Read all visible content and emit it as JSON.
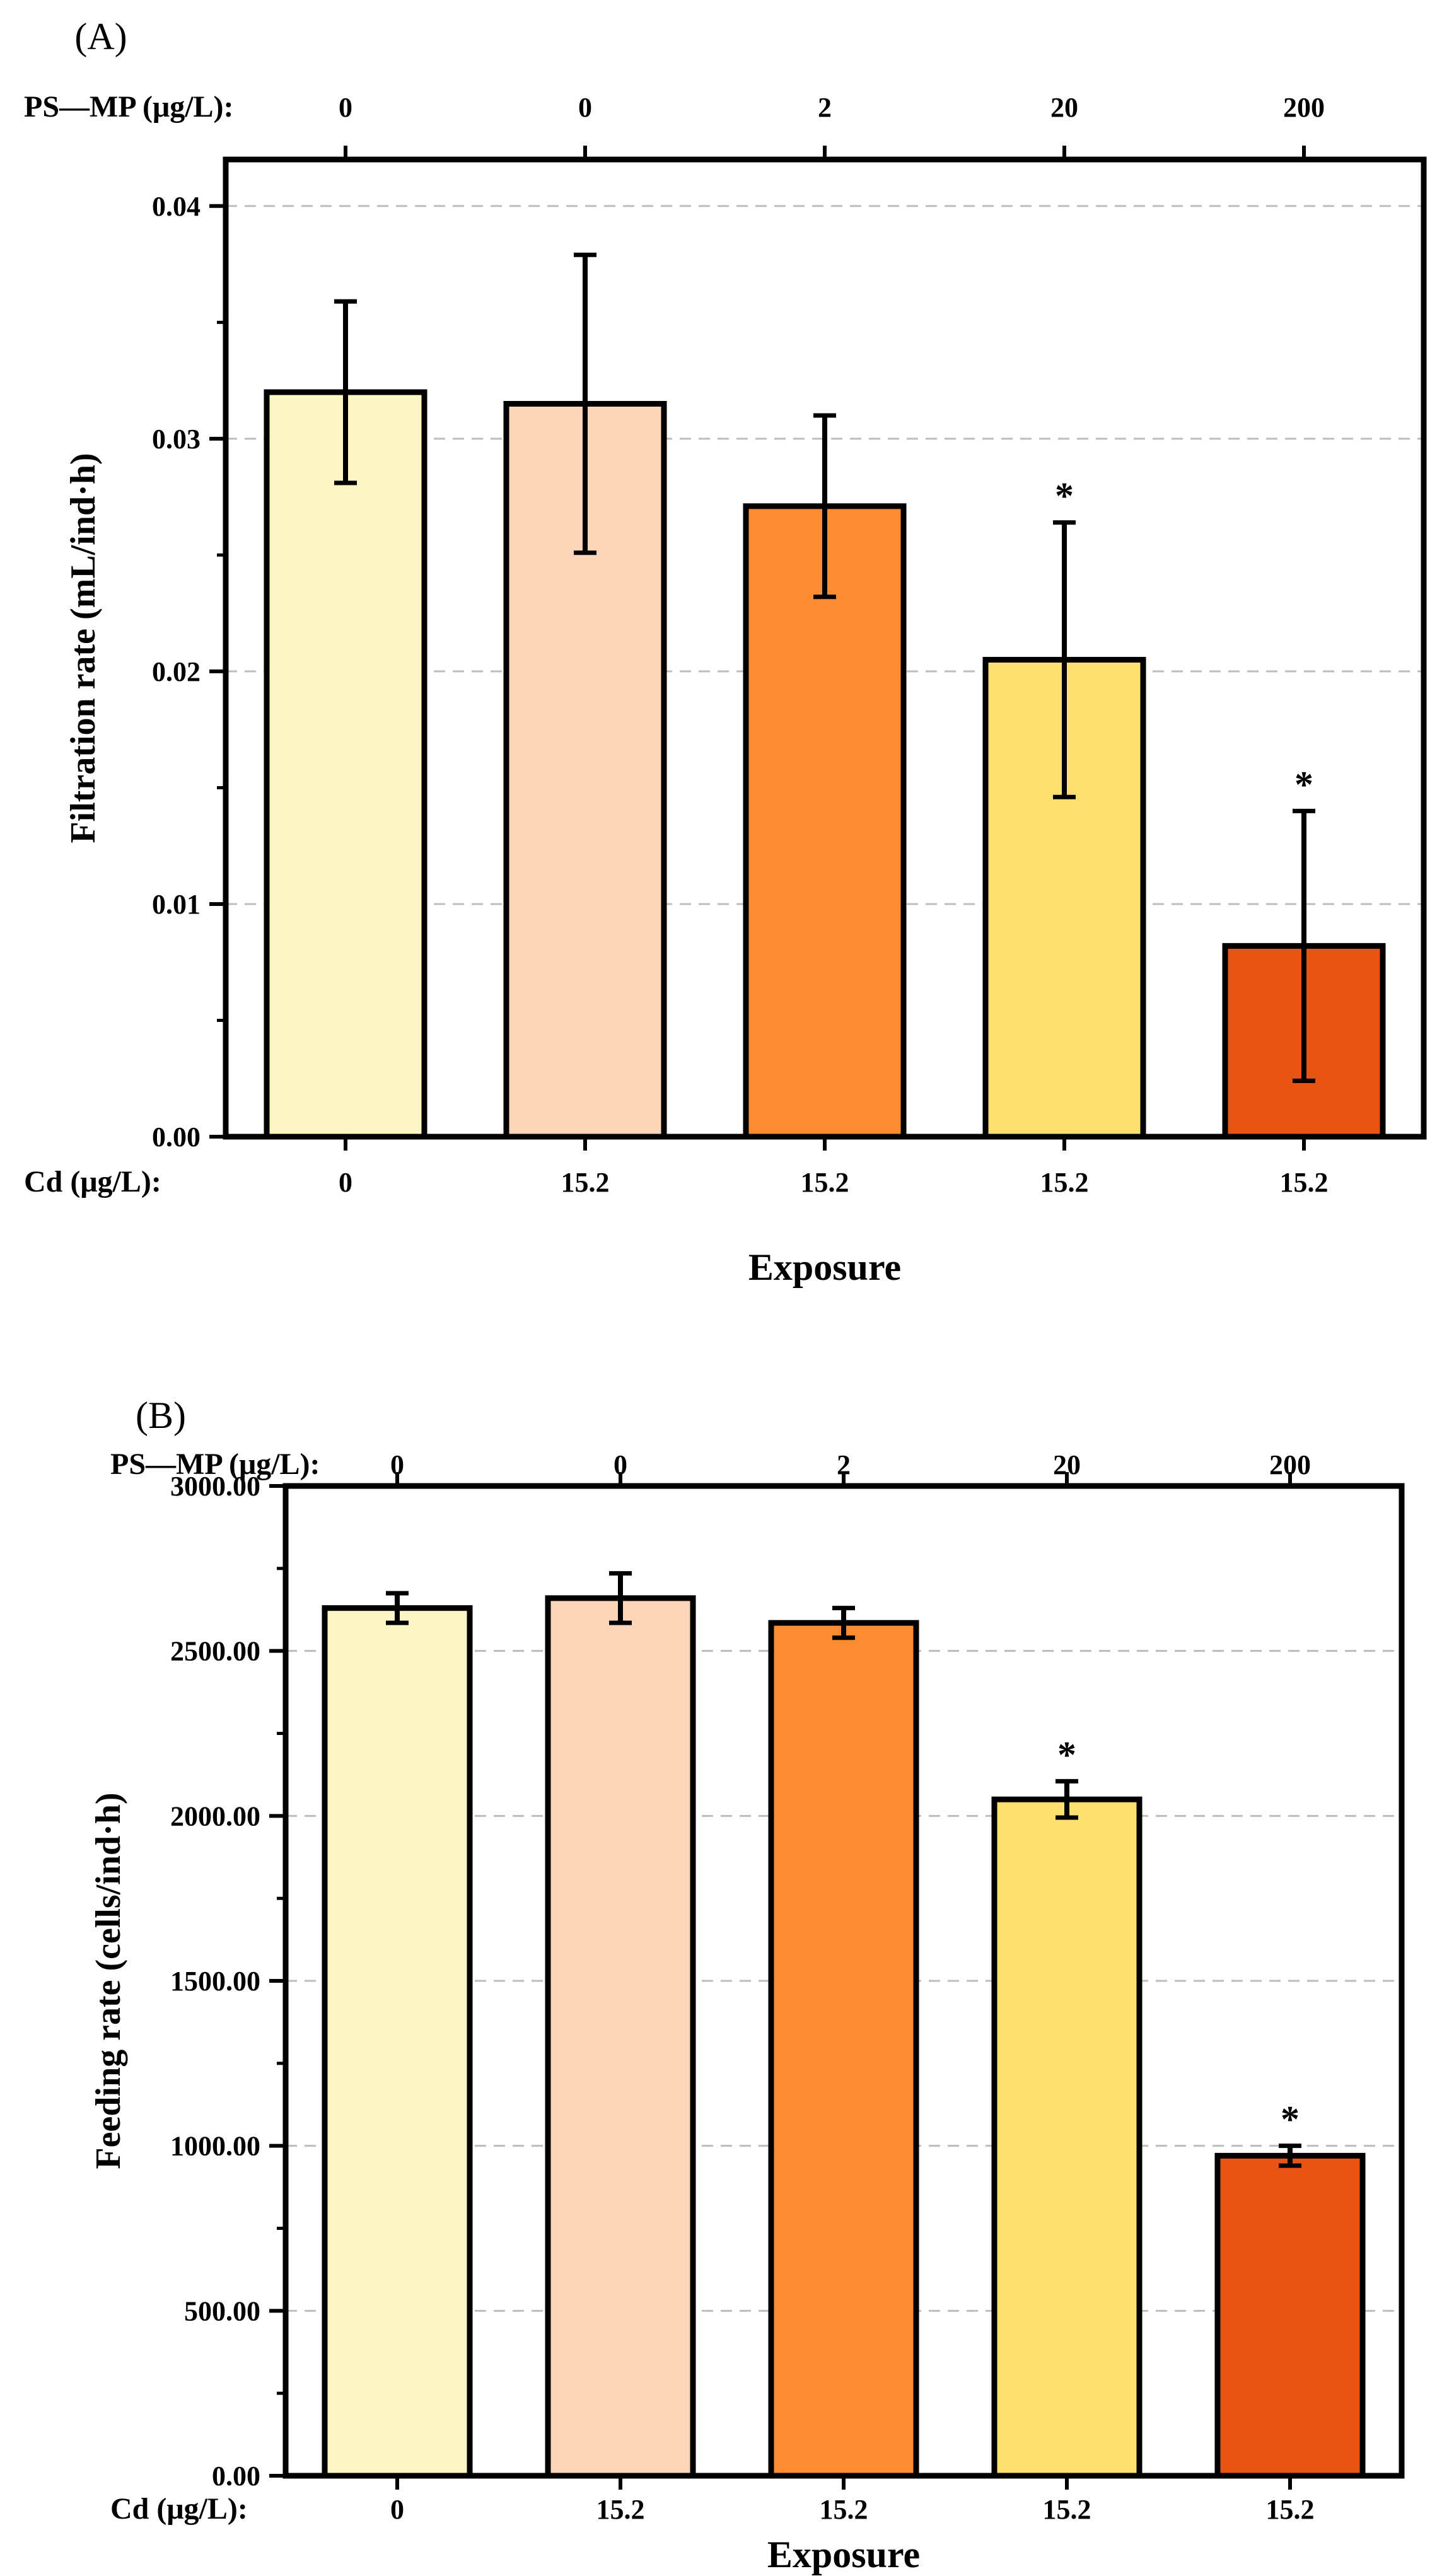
{
  "colors": {
    "bar_fills": [
      "#FBF6C3",
      "#FDD6BA",
      "#FC8C32",
      "#FEE071",
      "#E85413"
    ],
    "axis": "#000000",
    "grid": "#BDBDBD"
  },
  "chart_data": [
    {
      "type": "bar",
      "panel_label": "(A)",
      "xlabel": "Exposure",
      "ylabel": "Filtration rate (mL/ind·h)",
      "ylim": [
        0,
        0.042
      ],
      "yticks": [
        0,
        0.01,
        0.02,
        0.03,
        0.04
      ],
      "ytick_labels": [
        "0.00",
        "0.01",
        "0.02",
        "0.03",
        "0.04"
      ],
      "grid": "horizontal dashed",
      "top_row_title": "PS—MP (μg/L):",
      "top_labels": [
        "0",
        "0",
        "2",
        "20",
        "200"
      ],
      "bottom_row_title": "Cd (μg/L):",
      "categories": [
        "0",
        "15.2",
        "15.2",
        "15.2",
        "15.2"
      ],
      "values": [
        0.032,
        0.0315,
        0.0271,
        0.0205,
        0.0082
      ],
      "errors": [
        0.0039,
        0.0064,
        0.0039,
        0.0059,
        0.0058
      ],
      "significance": [
        "",
        "",
        "",
        "*",
        "*"
      ]
    },
    {
      "type": "bar",
      "panel_label": "(B)",
      "xlabel": "Exposure",
      "ylabel": "Feeding rate (cells/ind·h)",
      "ylim": [
        0,
        3000
      ],
      "yticks": [
        0,
        500,
        1000,
        1500,
        2000,
        2500,
        3000
      ],
      "ytick_labels": [
        "0.00",
        "500.00",
        "1000.00",
        "1500.00",
        "2000.00",
        "2500.00",
        "3000.00"
      ],
      "grid": "horizontal dashed",
      "top_row_title": "PS—MP (μg/L):",
      "top_labels": [
        "0",
        "0",
        "2",
        "20",
        "200"
      ],
      "bottom_row_title": "Cd (μg/L):",
      "categories": [
        "0",
        "15.2",
        "15.2",
        "15.2",
        "15.2"
      ],
      "values": [
        2630,
        2660,
        2585,
        2050,
        970
      ],
      "errors": [
        45,
        75,
        45,
        55,
        30
      ],
      "significance": [
        "",
        "",
        "",
        "*",
        "*"
      ]
    }
  ]
}
